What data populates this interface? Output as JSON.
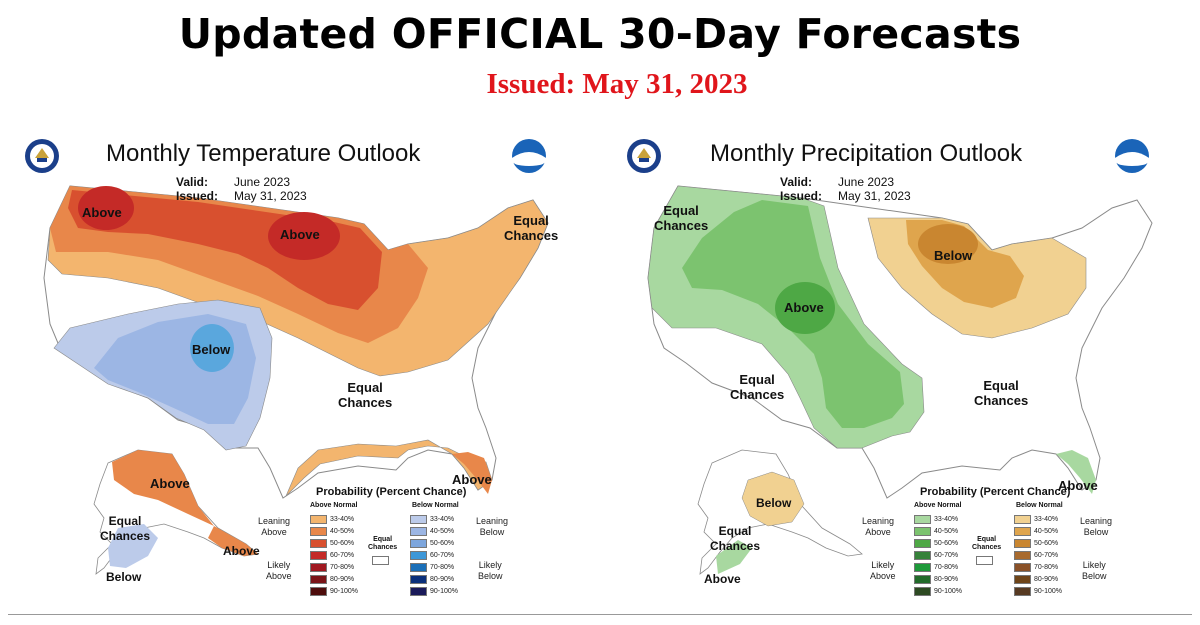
{
  "header": {
    "title": "Updated OFFICIAL 30-Day Forecasts",
    "issued": "Issued: May 31, 2023"
  },
  "colors": {
    "above": [
      "#f3b56e",
      "#e8874a",
      "#d8502f",
      "#c42a27",
      "#a01820",
      "#7a1418",
      "#4e0d0c"
    ],
    "below": [
      "#bccbea",
      "#9cb6e4",
      "#7da6dd",
      "#3c97d8",
      "#1a6fb8",
      "#0a2f7a",
      "#1a1a5a"
    ],
    "wet": [
      "#a8d8a0",
      "#7cc36f",
      "#4ea845",
      "#36823a",
      "#1e9a3a",
      "#226b2a",
      "#2d4a22"
    ],
    "dry": [
      "#f1d191",
      "#dfa54d",
      "#c98630",
      "#a86a2e",
      "#8a5128",
      "#6e4418",
      "#573a22"
    ]
  },
  "panels": {
    "temperature": {
      "title": "Monthly Temperature Outlook",
      "valid_label": "Valid:",
      "valid_value": "June 2023",
      "issued_label": "Issued:",
      "issued_value": "May 31, 2023",
      "labels": {
        "above_nw": "Above",
        "above_north": "Above",
        "equal_ne_1": "Equal",
        "equal_ne_2": "Chances",
        "below_sw": "Below",
        "equal_se_1": "Equal",
        "equal_se_2": "Chances",
        "above_florida": "Above",
        "above_alaska": "Above",
        "equal_ak_1": "Equal",
        "equal_ak_2": "Chances",
        "above_ak_se": "Above",
        "below_ak": "Below"
      },
      "legend": {
        "title": "Probability (Percent Chance)",
        "left_header": "Above Normal",
        "right_header": "Below Normal",
        "leaning_left_1": "Leaning",
        "leaning_left_2": "Above",
        "likely_left_1": "Likely",
        "likely_left_2": "Above",
        "leaning_right_1": "Leaning",
        "leaning_right_2": "Below",
        "likely_right_1": "Likely",
        "likely_right_2": "Below",
        "ec_1": "Equal",
        "ec_2": "Chances"
      }
    },
    "precipitation": {
      "title": "Monthly Precipitation Outlook",
      "valid_label": "Valid:",
      "valid_value": "June 2023",
      "issued_label": "Issued:",
      "issued_value": "May 31, 2023",
      "labels": {
        "equal_nw_1": "Equal",
        "equal_nw_2": "Chances",
        "below_north": "Below",
        "above_center": "Above",
        "equal_sw_1": "Equal",
        "equal_sw_2": "Chances",
        "equal_se_1": "Equal",
        "equal_se_2": "Chances",
        "above_florida": "Above",
        "below_alaska": "Below",
        "equal_ak_1": "Equal",
        "equal_ak_2": "Chances",
        "above_ak": "Above"
      },
      "legend": {
        "title": "Probability (Percent Chance)",
        "left_header": "Above Normal",
        "right_header": "Below Normal",
        "leaning_left_1": "Leaning",
        "leaning_left_2": "Above",
        "likely_left_1": "Likely",
        "likely_left_2": "Above",
        "leaning_right_1": "Leaning",
        "leaning_right_2": "Below",
        "likely_right_1": "Likely",
        "likely_right_2": "Below",
        "ec_1": "Equal",
        "ec_2": "Chances"
      }
    }
  },
  "legend_ranges": [
    "33-40%",
    "40-50%",
    "50-60%",
    "60-70%",
    "70-80%",
    "80-90%",
    "90-100%"
  ]
}
